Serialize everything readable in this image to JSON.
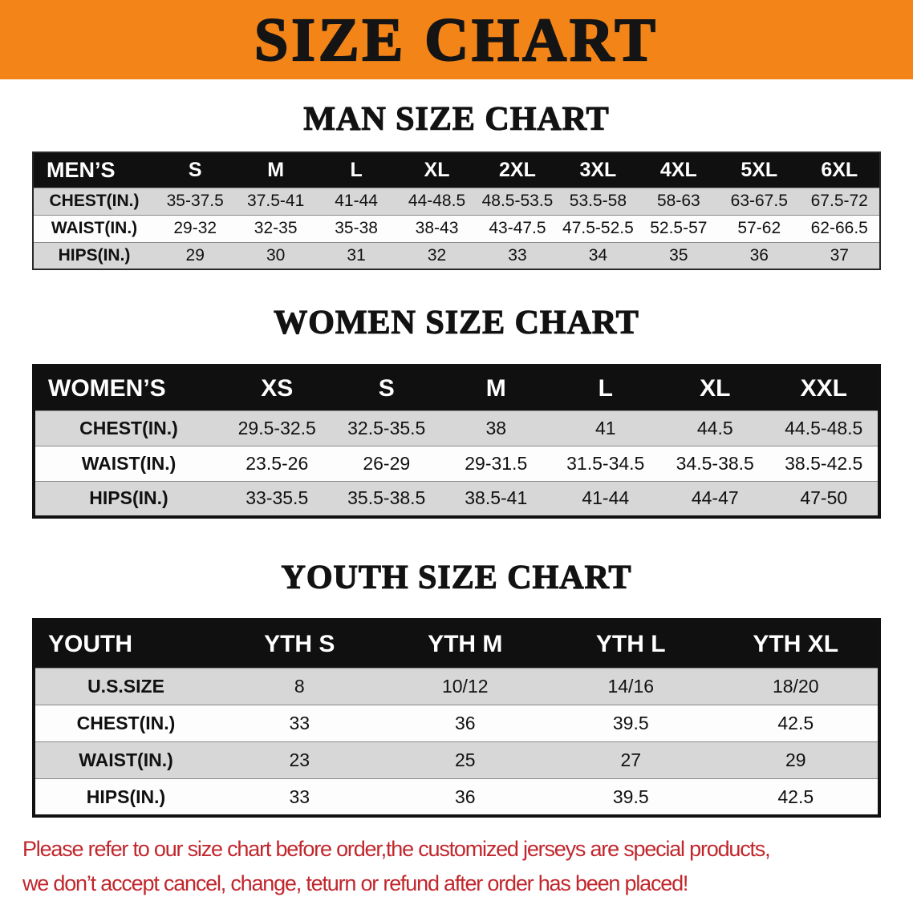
{
  "banner": {
    "title": "SIZE CHART",
    "bg_color": "#f28418",
    "text_color": "#141414"
  },
  "sections": [
    {
      "id": "mens",
      "heading": "MAN SIZE CHART",
      "table": {
        "header": [
          "MEN’S",
          "S",
          "M",
          "L",
          "XL",
          "2XL",
          "3XL",
          "4XL",
          "5XL",
          "6XL"
        ],
        "rows": [
          [
            "CHEST(IN.)",
            "35-37.5",
            "37.5-41",
            "41-44",
            "44-48.5",
            "48.5-53.5",
            "53.5-58",
            "58-63",
            "63-67.5",
            "67.5-72"
          ],
          [
            "WAIST(IN.)",
            "29-32",
            "32-35",
            "35-38",
            "38-43",
            "43-47.5",
            "47.5-52.5",
            "52.5-57",
            "57-62",
            "62-66.5"
          ],
          [
            "HIPS(IN.)",
            "29",
            "30",
            "31",
            "32",
            "33",
            "34",
            "35",
            "36",
            "37"
          ]
        ]
      }
    },
    {
      "id": "womens",
      "heading": "WOMEN SIZE CHART",
      "table": {
        "header": [
          "WOMEN’S",
          "XS",
          "S",
          "M",
          "L",
          "XL",
          "XXL"
        ],
        "rows": [
          [
            "CHEST(IN.)",
            "29.5-32.5",
            "32.5-35.5",
            "38",
            "41",
            "44.5",
            "44.5-48.5"
          ],
          [
            "WAIST(IN.)",
            "23.5-26",
            "26-29",
            "29-31.5",
            "31.5-34.5",
            "34.5-38.5",
            "38.5-42.5"
          ],
          [
            "HIPS(IN.)",
            "33-35.5",
            "35.5-38.5",
            "38.5-41",
            "41-44",
            "44-47",
            "47-50"
          ]
        ]
      }
    },
    {
      "id": "youth",
      "heading": "YOUTH SIZE CHART",
      "table": {
        "header": [
          "YOUTH",
          "YTH S",
          "YTH M",
          "YTH L",
          "YTH XL"
        ],
        "rows": [
          [
            "U.S.SIZE",
            "8",
            "10/12",
            "14/16",
            "18/20"
          ],
          [
            "CHEST(IN.)",
            "33",
            "36",
            "39.5",
            "42.5"
          ],
          [
            "WAIST(IN.)",
            "23",
            "25",
            "27",
            "29"
          ],
          [
            "HIPS(IN.)",
            "33",
            "36",
            "39.5",
            "42.5"
          ]
        ]
      }
    }
  ],
  "table_style": {
    "header_bg_color": "#101010",
    "header_text_color": "#ffffff",
    "stripe_color": "#d7d7d7"
  },
  "disclaimer": {
    "line1": "Please refer to our size chart before order,the customized jerseys are special products,",
    "line2": "we don’t accept cancel, change, teturn or refund after order has been placed!",
    "color": "#c1272d"
  }
}
